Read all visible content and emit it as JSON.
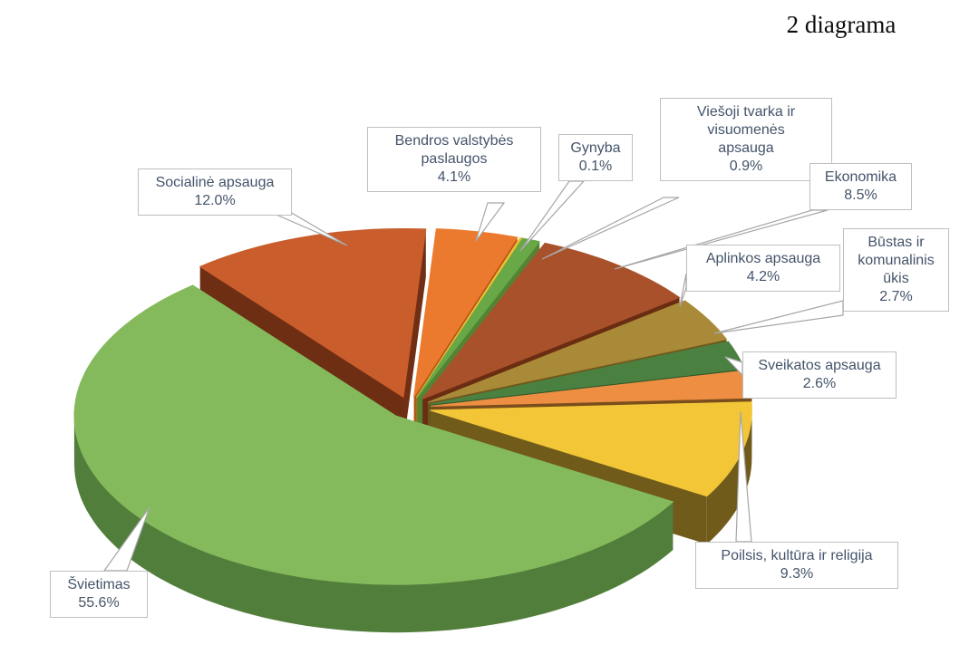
{
  "title": "2 diagrama",
  "chart_data": {
    "type": "pie",
    "is_3d": true,
    "exploded": true,
    "start_angle_deg": 4,
    "direction": "clockwise",
    "units": "%",
    "slices": [
      {
        "label": "Bendros valstybės paslaugos",
        "value": 4.1,
        "pct_label": "4.1%",
        "color": "#EB7A2F",
        "side_color": "#B25817"
      },
      {
        "label": "Gynyba",
        "value": 0.1,
        "pct_label": "0.1%",
        "color": "#F3C031",
        "side_color": "#A8860E"
      },
      {
        "label": "Viešoji tvarka ir visuomenės apsauga",
        "value": 0.9,
        "pct_label": "0.9%",
        "color": "#69A846",
        "side_color": "#548433"
      },
      {
        "label": "Ekonomika",
        "value": 8.5,
        "pct_label": "8.5%",
        "color": "#A9512A",
        "side_color": "#6B2D12"
      },
      {
        "label": "Aplinkos apsauga",
        "value": 4.2,
        "pct_label": "4.2%",
        "color": "#A98A38",
        "side_color": "#6F571B"
      },
      {
        "label": "Būstas ir komunalinis ūkis",
        "value": 2.7,
        "pct_label": "2.7%",
        "color": "#4A8040",
        "side_color": "#2F5428"
      },
      {
        "label": "Sveikatos apsauga",
        "value": 2.6,
        "pct_label": "2.6%",
        "color": "#ED8E42",
        "side_color": "#7A4E1C"
      },
      {
        "label": "Poilsis, kultūra ir religija",
        "value": 9.3,
        "pct_label": "9.3%",
        "color": "#F2C636",
        "side_color": "#705B1B"
      },
      {
        "label": "Švietimas",
        "value": 55.6,
        "pct_label": "55.6%",
        "color": "#84BA5C",
        "side_color": "#527E3C"
      },
      {
        "label": "Socialinė apsauga",
        "value": 12.0,
        "pct_label": "12.0%",
        "color": "#C95D2C",
        "side_color": "#702F14"
      }
    ],
    "colors": {
      "label_text": "#44546A",
      "label_border": "#BFBFBF",
      "leader_line": "#A6A6A6",
      "background": "#FFFFFF"
    },
    "legend": "none",
    "data_labels": "category name + percentage in callout boxes"
  }
}
